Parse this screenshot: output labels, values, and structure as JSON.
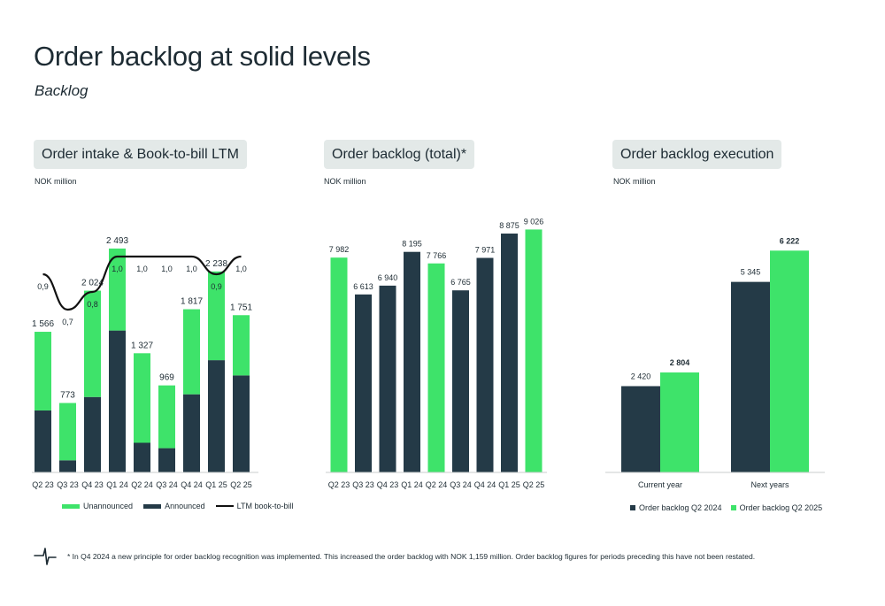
{
  "page": {
    "title": "Order backlog at solid levels",
    "subtitle": "Backlog",
    "footnote": "* In Q4 2024 a new principle for order backlog recognition was implemented. This increased the order backlog with NOK 1,159 million. Order backlog figures for periods preceding this have not been restated."
  },
  "colors": {
    "dark": "#243a47",
    "green": "#3ee36a",
    "line": "#111111"
  },
  "icons": {
    "logo": "stylized-plus-logo-icon"
  },
  "chart_data": [
    {
      "type": "bar",
      "title": "Order intake & Book-to-bill LTM",
      "unit": "NOK million",
      "stacked": true,
      "categories": [
        "Q2 23",
        "Q3 23",
        "Q4 23",
        "Q1 24",
        "Q2 24",
        "Q3 24",
        "Q4 24",
        "Q1 25",
        "Q2 25"
      ],
      "series": [
        {
          "name": "Announced",
          "values": [
            690,
            135,
            840,
            1580,
            330,
            270,
            870,
            1250,
            1080
          ]
        },
        {
          "name": "Unannounced",
          "values": [
            876,
            638,
            1184,
            913,
            997,
            699,
            947,
            988,
            671
          ]
        }
      ],
      "totals": [
        1566,
        773,
        2024,
        2493,
        1327,
        969,
        1817,
        2238,
        1751
      ],
      "total_labels": [
        "1 566",
        "773",
        "2 024",
        "2 493",
        "1 327",
        "969",
        "1 817",
        "2 238",
        "1 751"
      ],
      "line": {
        "name": "LTM book-to-bill",
        "values": [
          0.9,
          0.7,
          0.8,
          1.0,
          1.0,
          1.0,
          1.0,
          0.9,
          1.0
        ],
        "labels": [
          "0,9",
          "0,7",
          "0,8",
          "1,0",
          "1,0",
          "1,0",
          "1,0",
          "0,9",
          "1,0"
        ]
      },
      "legend": [
        "Unannounced",
        "Announced",
        "LTM book-to-bill"
      ],
      "ylim": [
        0,
        2650
      ]
    },
    {
      "type": "bar",
      "title": "Order backlog (total)*",
      "unit": "NOK million",
      "categories": [
        "Q2 23",
        "Q3 23",
        "Q4 23",
        "Q1 24",
        "Q2 24",
        "Q3 24",
        "Q4 24",
        "Q1 25",
        "Q2 25"
      ],
      "values": [
        7982,
        6613,
        6940,
        8195,
        7766,
        6765,
        7971,
        8875,
        9026
      ],
      "labels": [
        "7 982",
        "6 613",
        "6 940",
        "8 195",
        "7 766",
        "6 765",
        "7 971",
        "8 875",
        "9 026"
      ],
      "highlight": [
        true,
        false,
        false,
        false,
        true,
        false,
        false,
        false,
        true
      ],
      "ylim": [
        0,
        9500
      ]
    },
    {
      "type": "bar",
      "title": "Order backlog execution",
      "unit": "NOK million",
      "categories": [
        "Current year",
        "Next years"
      ],
      "series": [
        {
          "name": "Order backlog Q2 2024",
          "values": [
            2420,
            5345
          ],
          "labels": [
            "2 420",
            "5 345"
          ]
        },
        {
          "name": "Order backlog Q2 2025",
          "values": [
            2804,
            6222
          ],
          "labels": [
            "2 804",
            "6 222"
          ]
        }
      ],
      "legend": [
        "Order backlog Q2 2024",
        "Order backlog Q2 2025"
      ],
      "ylim": [
        0,
        6800
      ]
    }
  ]
}
